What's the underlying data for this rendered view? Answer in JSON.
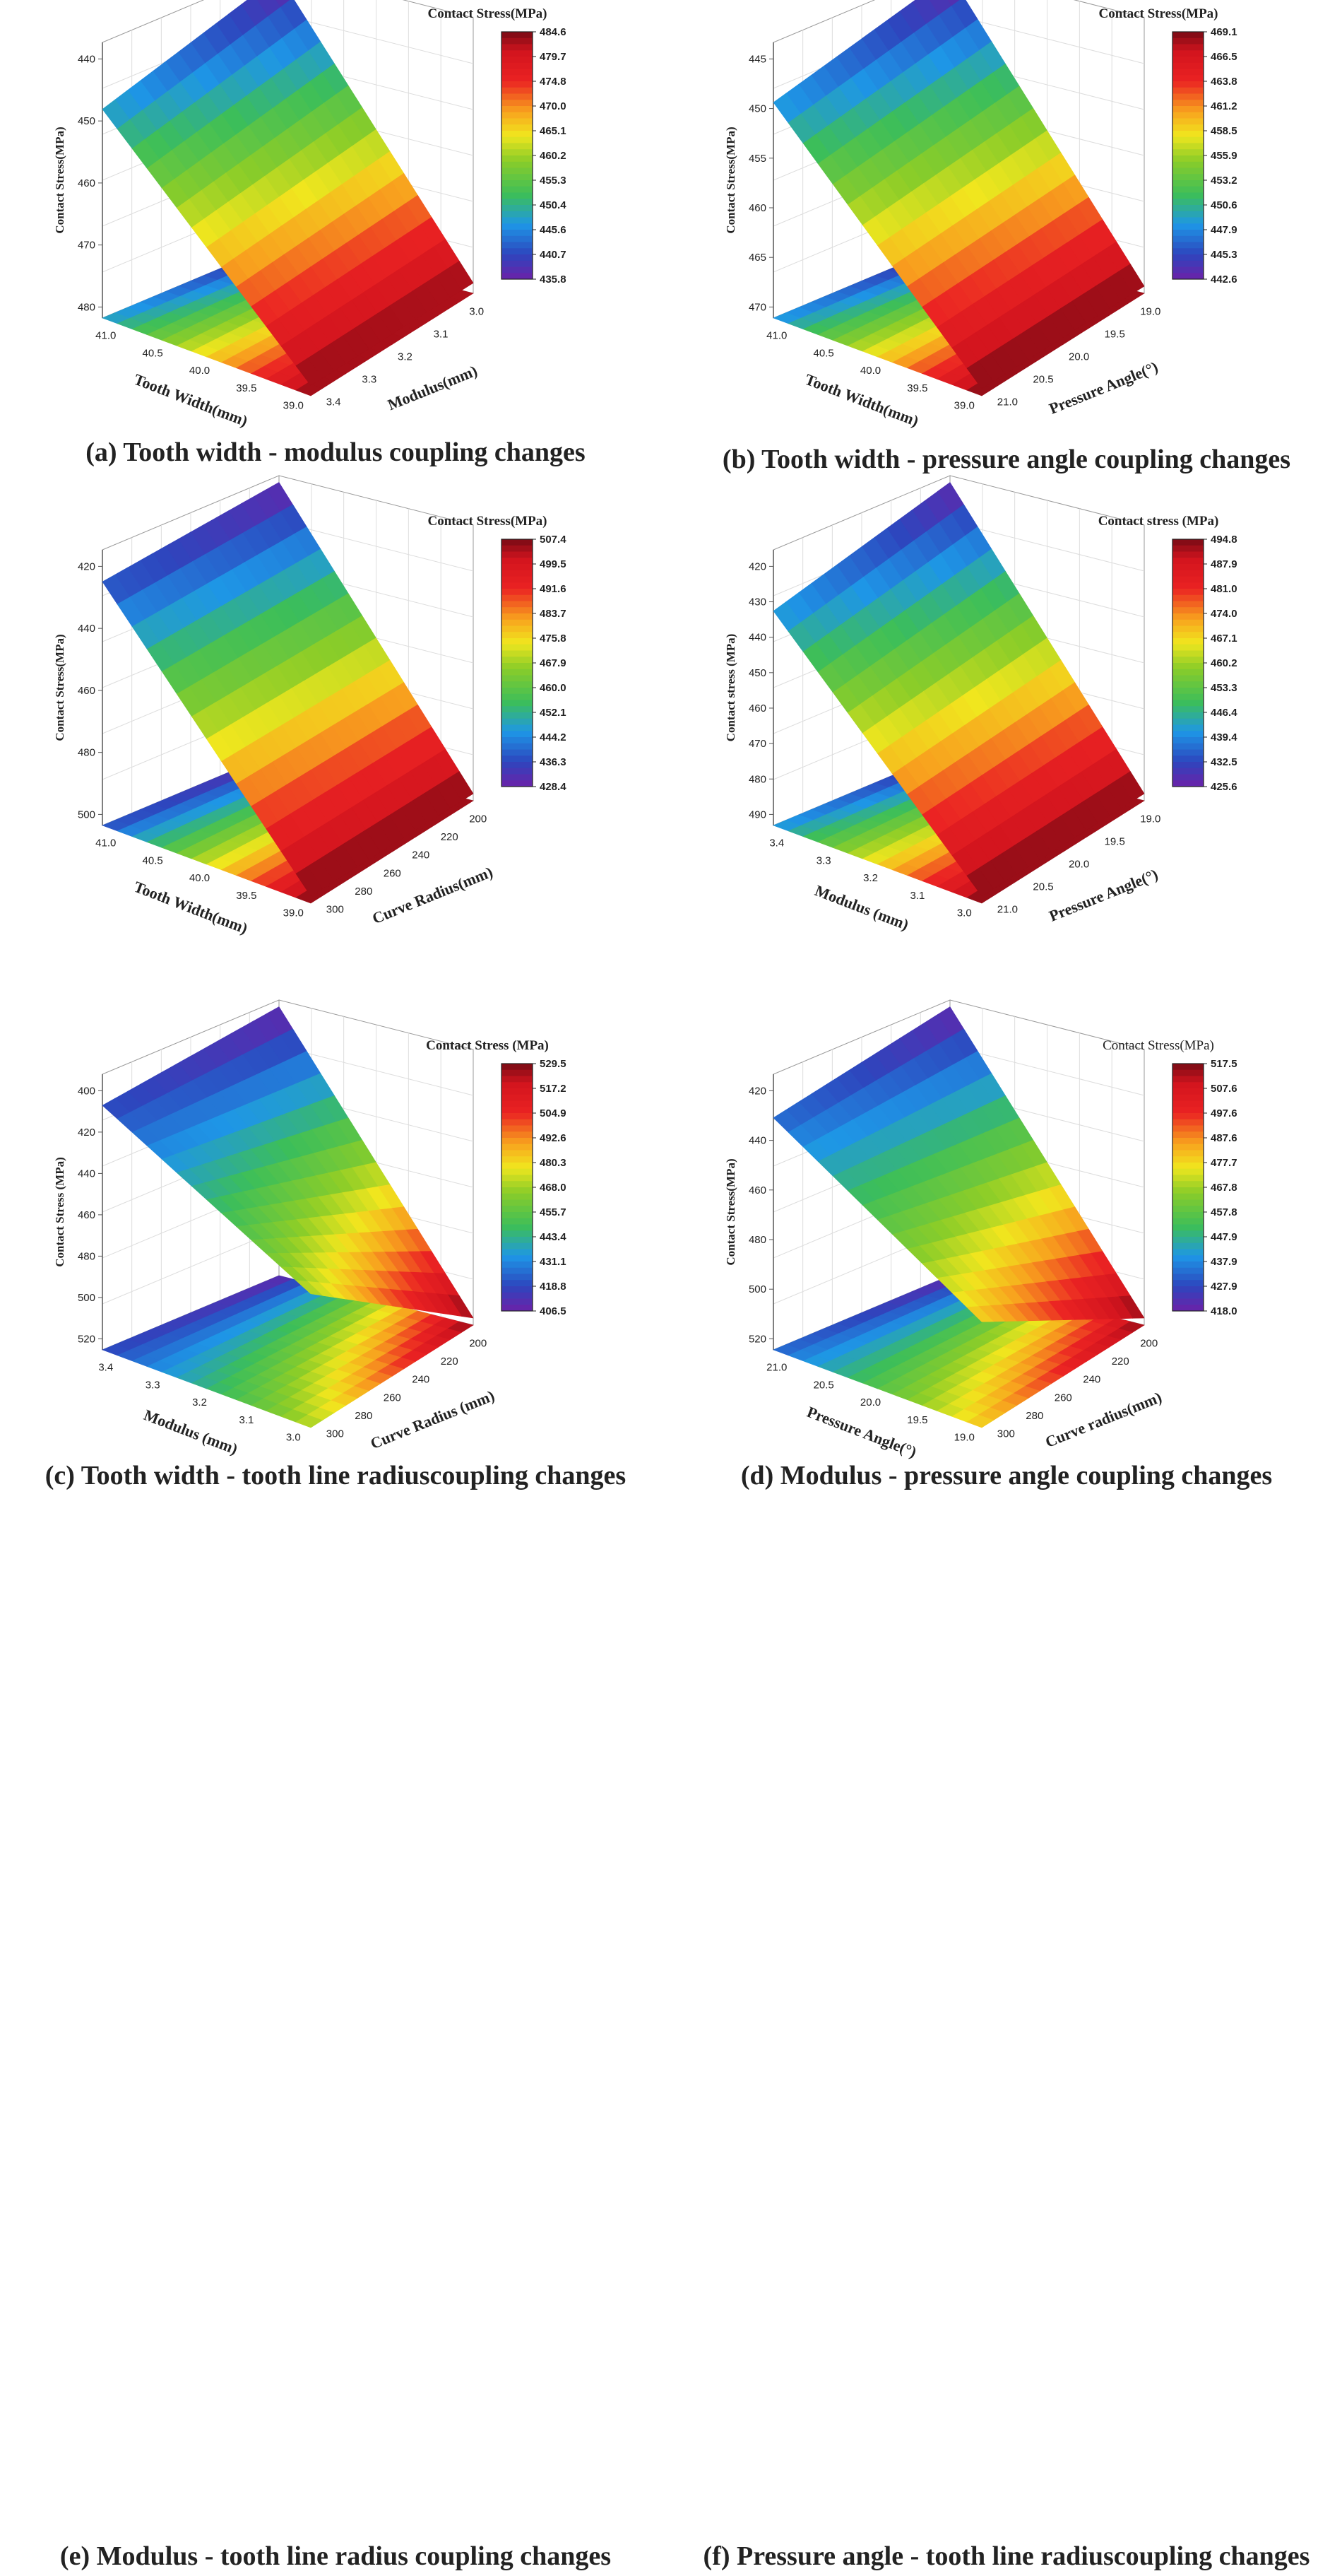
{
  "chart_data": [
    {
      "type": "surface3d",
      "caption": "(a) Tooth width - modulus coupling changes",
      "x_axis": {
        "label": "Tooth Width(mm)",
        "ticks": [
          "41.0",
          "40.5",
          "40.0",
          "39.5",
          "39.0"
        ]
      },
      "y_axis": {
        "label": "Modulus(mm)",
        "ticks": [
          "3.0",
          "3.1",
          "3.2",
          "3.3",
          "3.4"
        ]
      },
      "z_axis": {
        "label": "Contact Stress(MPa)",
        "ticks": [
          "440",
          "450",
          "460",
          "470",
          "480"
        ],
        "range": [
          435.8,
          484.6
        ],
        "inverted": true
      },
      "colorbar": {
        "title": "Contact Stress(MPa)",
        "bold": true,
        "ticks": [
          "484.6",
          "479.7",
          "474.8",
          "470.0",
          "465.1",
          "460.2",
          "455.3",
          "450.4",
          "445.6",
          "440.7",
          "435.8"
        ]
      },
      "z_corners": [
        436,
        484,
        447,
        484
      ]
    },
    {
      "type": "surface3d",
      "caption": "(b) Tooth width - pressure angle coupling changes",
      "x_axis": {
        "label": "Tooth Width(mm)",
        "ticks": [
          "41.0",
          "40.5",
          "40.0",
          "39.5",
          "39.0"
        ]
      },
      "y_axis": {
        "label": "Pressure Angle(°)",
        "ticks": [
          "19.0",
          "19.5",
          "20.0",
          "20.5",
          "21.0"
        ]
      },
      "z_axis": {
        "label": "Contact Stress(MPa)",
        "ticks": [
          "445",
          "450",
          "455",
          "460",
          "465",
          "470"
        ],
        "range": [
          442.6,
          469.1
        ],
        "inverted": true
      },
      "colorbar": {
        "title": "Contact Stress(MPa)",
        "bold": true,
        "ticks": [
          "469.1",
          "466.5",
          "463.8",
          "461.2",
          "458.5",
          "455.9",
          "453.2",
          "450.6",
          "447.9",
          "445.3",
          "442.6"
        ]
      },
      "z_corners": [
        442.6,
        469.1,
        448,
        469.1
      ]
    },
    {
      "type": "surface3d",
      "caption": "(c) Tooth width - tooth line radiuscoupling changes",
      "x_axis": {
        "label": "Tooth Width(mm)",
        "ticks": [
          "41.0",
          "40.5",
          "40.0",
          "39.5",
          "39.0"
        ]
      },
      "y_axis": {
        "label": "Curve Radius(mm)",
        "ticks": [
          "200",
          "220",
          "240",
          "260",
          "280",
          "300"
        ]
      },
      "z_axis": {
        "label": "Contact Stress(MPa)",
        "ticks": [
          "420",
          "440",
          "460",
          "480",
          "500"
        ],
        "range": [
          428.4,
          507.4
        ],
        "inverted": true
      },
      "colorbar": {
        "title": "Contact Stress(MPa)",
        "bold": true,
        "ticks": [
          "507.4",
          "499.5",
          "491.6",
          "483.7",
          "475.8",
          "467.9",
          "460.0",
          "452.1",
          "444.2",
          "436.3",
          "428.4"
        ]
      },
      "z_corners": [
        428.4,
        507.4,
        436,
        507.4
      ]
    },
    {
      "type": "surface3d",
      "caption": "(d) Modulus - pressure angle coupling changes",
      "x_axis": {
        "label": "Modulus (mm)",
        "ticks": [
          "3.4",
          "3.3",
          "3.2",
          "3.1",
          "3.0"
        ]
      },
      "y_axis": {
        "label": "Pressure Angle(°)",
        "ticks": [
          "19.0",
          "19.5",
          "20.0",
          "20.5",
          "21.0"
        ]
      },
      "z_axis": {
        "label": "Contact stress (MPa)",
        "ticks": [
          "420",
          "430",
          "440",
          "450",
          "460",
          "470",
          "480",
          "490"
        ],
        "range": [
          425.6,
          494.8
        ],
        "inverted": true
      },
      "colorbar": {
        "title": "Contact stress (MPa)",
        "bold": true,
        "ticks": [
          "494.8",
          "487.9",
          "481.0",
          "474.0",
          "467.1",
          "460.2",
          "453.3",
          "446.4",
          "439.4",
          "432.5",
          "425.6"
        ]
      },
      "z_corners": [
        425.6,
        494.8,
        440,
        494.8
      ]
    },
    {
      "type": "surface3d",
      "caption": "(e) Modulus - tooth  line  radius  coupling  changes",
      "x_axis": {
        "label": "Modulus (mm)",
        "ticks": [
          "3.4",
          "3.3",
          "3.2",
          "3.1",
          "3.0"
        ]
      },
      "y_axis": {
        "label": "Curve Radius (mm)",
        "ticks": [
          "200",
          "220",
          "240",
          "260",
          "280",
          "300"
        ]
      },
      "z_axis": {
        "label": "Contact Stress (MPa)",
        "ticks": [
          "400",
          "420",
          "440",
          "460",
          "480",
          "500",
          "520"
        ],
        "range": [
          406.5,
          529.5
        ],
        "inverted": true
      },
      "colorbar": {
        "title": "Contact Stress (MPa)",
        "bold": true,
        "ticks": [
          "529.5",
          "517.2",
          "504.9",
          "492.6",
          "480.3",
          "468.0",
          "455.7",
          "443.4",
          "431.1",
          "418.8",
          "406.5"
        ]
      },
      "z_corners": [
        406.5,
        529.5,
        418,
        470
      ]
    },
    {
      "type": "surface3d",
      "caption": "(f) Pressure  angle - tooth  line radiuscoupling changes",
      "x_axis": {
        "label": "Pressure Angle(°)",
        "ticks": [
          "21.0",
          "20.5",
          "20.0",
          "19.5",
          "19.0"
        ]
      },
      "y_axis": {
        "label": "Curve radius(mm)",
        "ticks": [
          "200",
          "220",
          "240",
          "260",
          "280",
          "300"
        ]
      },
      "z_axis": {
        "label": "Contact Stress(MPa)",
        "ticks": [
          "420",
          "440",
          "460",
          "480",
          "500",
          "520"
        ],
        "range": [
          418.0,
          517.5
        ],
        "inverted": true
      },
      "colorbar": {
        "title": "Contact Stress(MPa)",
        "bold": false,
        "ticks": [
          "517.5",
          "507.6",
          "497.6",
          "487.6",
          "477.7",
          "467.8",
          "457.8",
          "447.9",
          "437.9",
          "427.9",
          "418.0"
        ]
      },
      "z_corners": [
        418,
        517.5,
        432,
        480
      ]
    }
  ]
}
